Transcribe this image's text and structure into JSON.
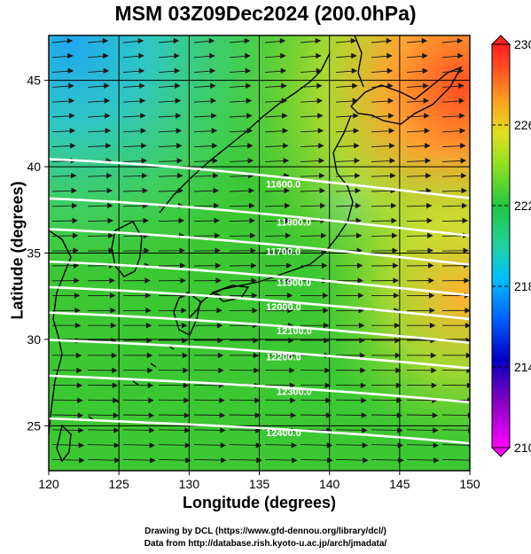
{
  "title": "MSM 03Z09Dec2024 (200.0hPa)",
  "xlabel": "Longitude (degrees)",
  "ylabel": "Latitude  (degrees)",
  "credits": {
    "line1": "Drawing by DCL (https://www.gfd-dennou.org/library/dcl/)",
    "line2": "Data from http://database.rish.kyoto-u.ac.jp/arch/jmadata/"
  },
  "chart_data": {
    "type": "heatmap",
    "xlim": [
      120,
      150
    ],
    "ylim": [
      22.4,
      47.6
    ],
    "x_ticks": [
      "120",
      "125",
      "130",
      "135",
      "140",
      "145",
      "150"
    ],
    "y_ticks": [
      "25",
      "30",
      "35",
      "40",
      "45"
    ],
    "grid": true,
    "colorbar": {
      "min": 210,
      "max": 230,
      "tick_labels": [
        "230",
        "226",
        "222",
        "218",
        "214",
        "210"
      ]
    },
    "contours": [
      {
        "label": "11600.0",
        "lat": 39.0
      },
      {
        "label": "11800.0",
        "lat": 36.8
      },
      {
        "label": "11700.0",
        "lat": 35.1
      },
      {
        "label": "11900.0",
        "lat": 33.3
      },
      {
        "label": "12000.0",
        "lat": 31.9
      },
      {
        "label": "12100.0",
        "lat": 30.5
      },
      {
        "label": "12200.0",
        "lat": 29.0
      },
      {
        "label": "12300.0",
        "lat": 27.0
      },
      {
        "label": "12400.0",
        "lat": 24.6
      }
    ],
    "wind_direction": "west-to-east"
  },
  "colors": {
    "cold": "#2aa8e0",
    "mid": "#3cc832",
    "warm": "#ff8020",
    "contour": "#ffffff"
  }
}
